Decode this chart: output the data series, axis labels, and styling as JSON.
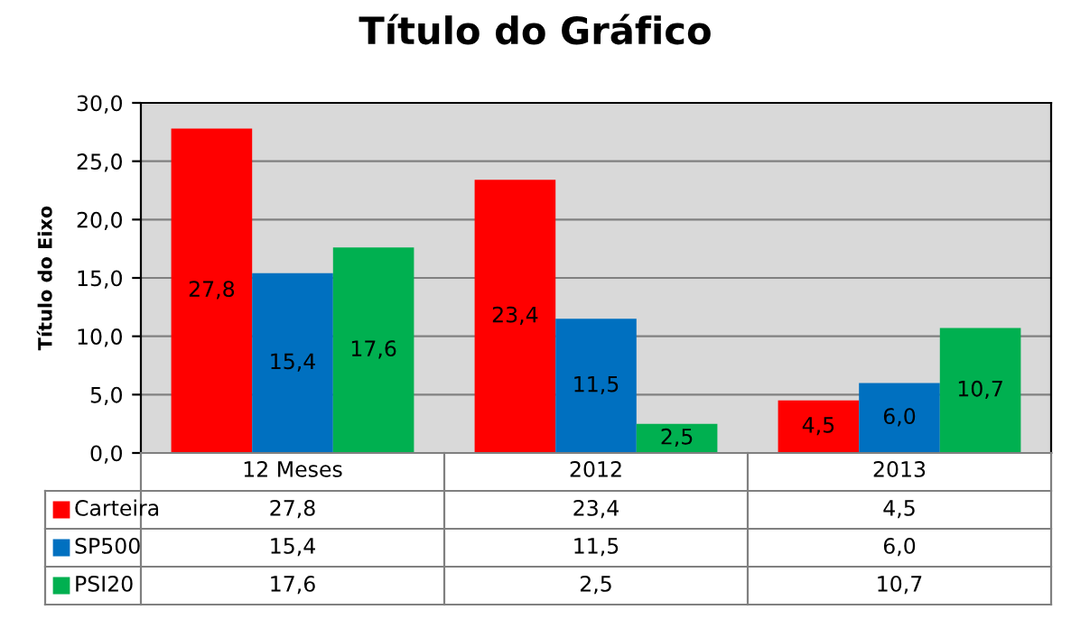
{
  "chart_data": {
    "type": "bar",
    "title": "Título do Gráfico",
    "ylabel": "Título do Eixo",
    "categories": [
      "12 Meses",
      "2012",
      "2013"
    ],
    "series": [
      {
        "name": "Carteira",
        "color": "#ff0000",
        "values": [
          27.8,
          23.4,
          4.5
        ],
        "value_labels": [
          "27,8",
          "23,4",
          "4,5"
        ]
      },
      {
        "name": "SP500",
        "color": "#0070c0",
        "values": [
          15.4,
          11.5,
          6.0
        ],
        "value_labels": [
          "15,4",
          "11,5",
          "6,0"
        ]
      },
      {
        "name": "PSI20",
        "color": "#00b050",
        "values": [
          17.6,
          2.5,
          10.7
        ],
        "value_labels": [
          "17,6",
          "2,5",
          "10,7"
        ]
      }
    ],
    "ylim": [
      0,
      30
    ],
    "yticks": [
      {
        "value": 0,
        "label": "0,0"
      },
      {
        "value": 5,
        "label": "5,0"
      },
      {
        "value": 10,
        "label": "10,0"
      },
      {
        "value": 15,
        "label": "15,0"
      },
      {
        "value": 20,
        "label": "20,0"
      },
      {
        "value": 25,
        "label": "25,0"
      },
      {
        "value": 30,
        "label": "30,0"
      }
    ],
    "grid": "y",
    "legend": "bottom"
  }
}
